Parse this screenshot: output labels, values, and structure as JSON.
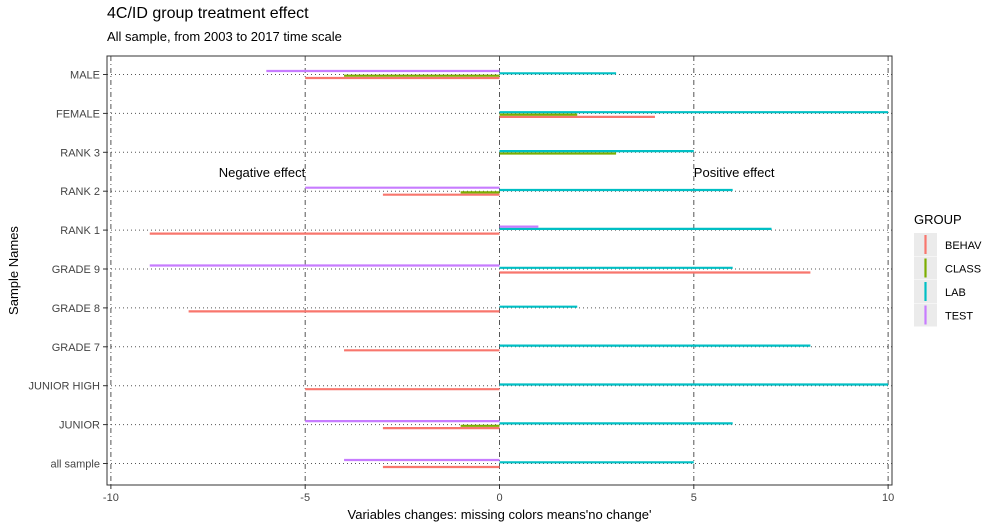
{
  "chart_data": {
    "type": "bar",
    "orientation": "horizontal",
    "title": "4C/ID group treatment effect",
    "subtitle": "All sample, from 2003 to 2017 time scale",
    "xlabel": "Variables changes: missing colors means'no change'",
    "ylabel": "Sample Names",
    "xlim": [
      -10.1,
      10.1
    ],
    "x_ticks": [
      -10,
      -5,
      0,
      5,
      10
    ],
    "x_tick_labels": [
      "-10",
      "-5",
      "0",
      "5",
      "10"
    ],
    "categories": [
      "all sample",
      "JUNIOR",
      "JUNIOR HIGH",
      "GRADE 7",
      "GRADE 8",
      "GRADE 9",
      "RANK 1",
      "RANK 2",
      "RANK 3",
      "FEMALE",
      "MALE"
    ],
    "legend": {
      "title": "GROUP",
      "position": "right"
    },
    "grid": true,
    "series": [
      {
        "name": "BEHAV",
        "color": "#F8766D",
        "values": [
          -3,
          -3,
          -5,
          -4,
          -8,
          8,
          -9,
          -3,
          null,
          4,
          -5
        ]
      },
      {
        "name": "CLASS",
        "color": "#7CAE00",
        "values": [
          null,
          -1,
          null,
          null,
          null,
          null,
          null,
          -1,
          3,
          2,
          -4
        ]
      },
      {
        "name": "LAB",
        "color": "#00BFC4",
        "values": [
          5,
          6,
          10,
          8,
          2,
          6,
          7,
          6,
          5,
          10,
          3
        ]
      },
      {
        "name": "TEST",
        "color": "#C77CFF",
        "values": [
          -4,
          -5,
          null,
          null,
          null,
          -9,
          1,
          -5,
          null,
          null,
          -6
        ]
      }
    ],
    "annotations": [
      {
        "text": "Negative effect",
        "x": -5.0,
        "y": "RANK 2"
      },
      {
        "text": "Positive effect",
        "x": 5.0,
        "y": "RANK 2"
      }
    ]
  }
}
